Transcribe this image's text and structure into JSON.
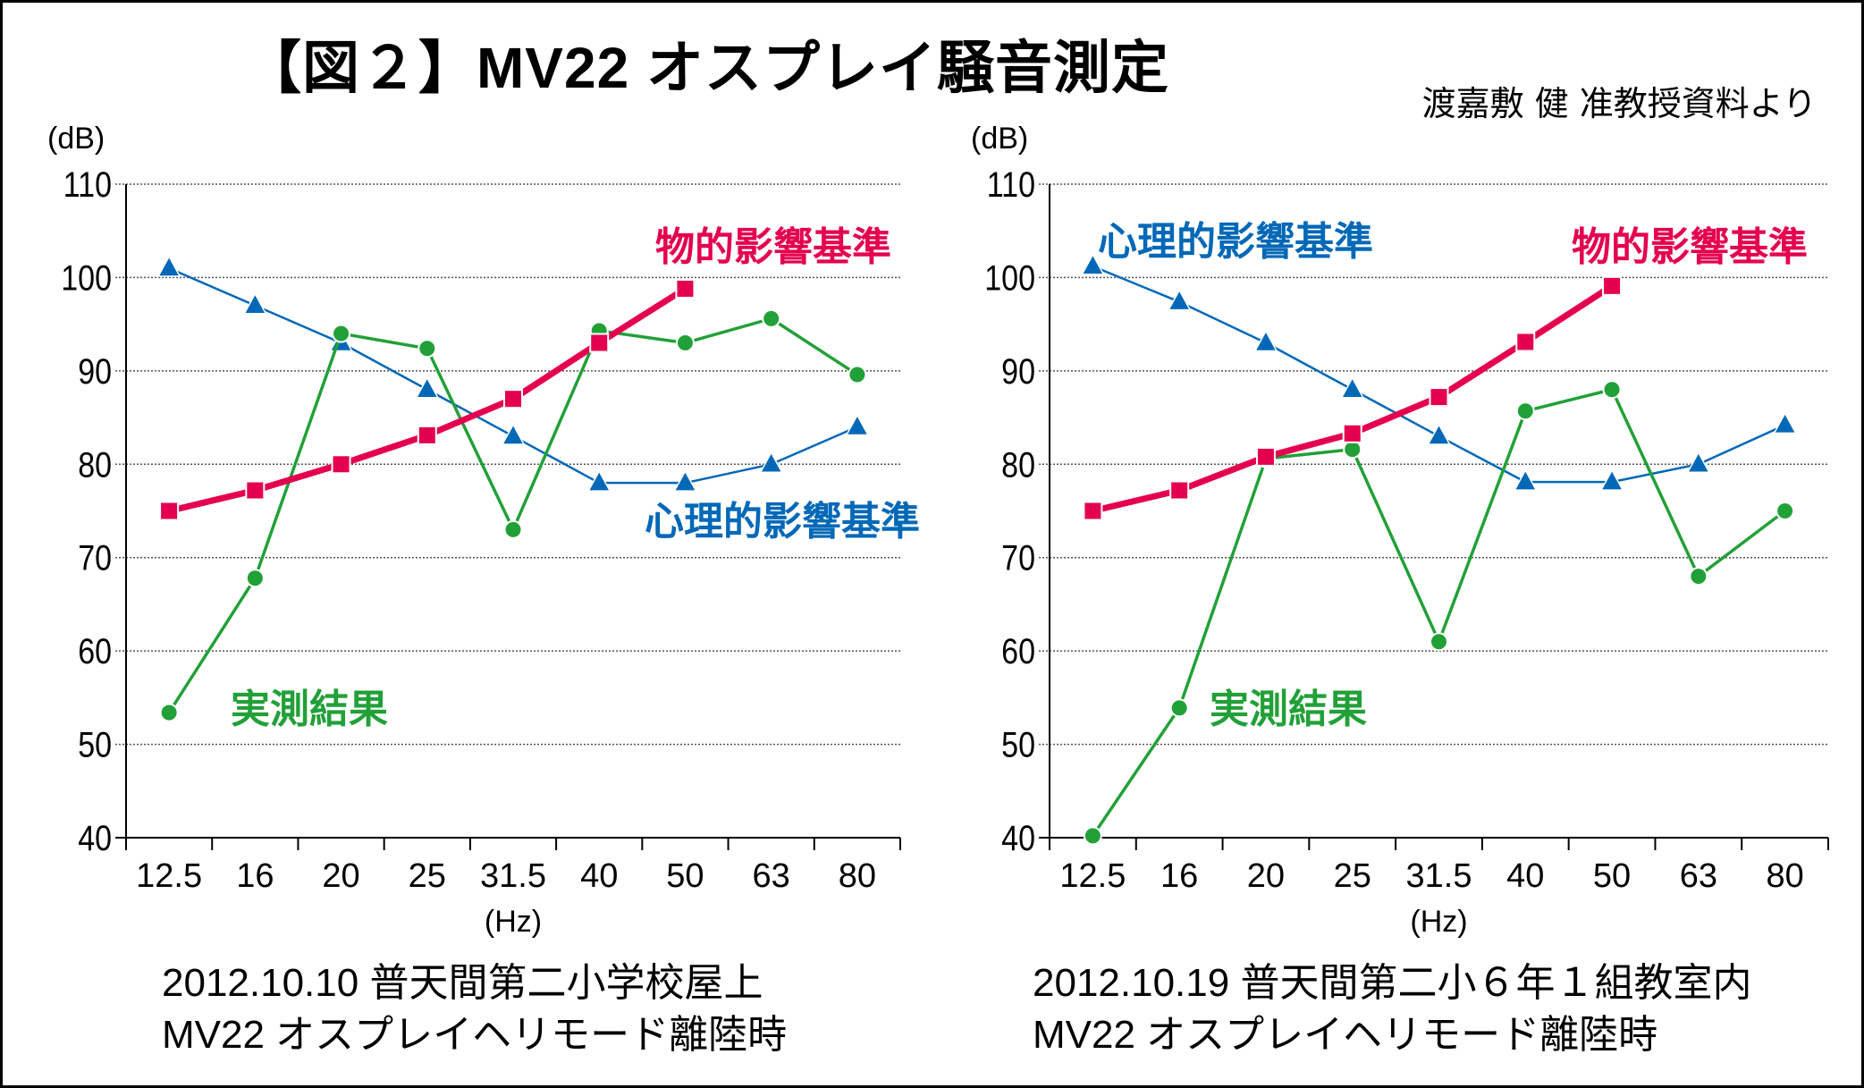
{
  "title": "【図２】MV22 オスプレイ騒音測定",
  "credit": "渡嘉敷 健 准教授資料より",
  "colors": {
    "physical": "#e4004f",
    "psychological": "#0068b7",
    "measured": "#22a038"
  },
  "chart_data": [
    {
      "type": "line",
      "ylabel": "(dB)",
      "xlabel": "(Hz)",
      "ylim": [
        40,
        110
      ],
      "yticks": [
        "40",
        "50",
        "60",
        "70",
        "80",
        "90",
        "100",
        "110"
      ],
      "categories": [
        "12.5",
        "16",
        "20",
        "25",
        "31.5",
        "40",
        "50",
        "63",
        "80"
      ],
      "grid": true,
      "caption": [
        "2012.10.10 普天間第二小学校屋上",
        "MV22 オスプレイヘリモード離陸時"
      ],
      "series": [
        {
          "name": "心理的影響基準",
          "marker": "triangle",
          "values": [
            101,
            97,
            93,
            88,
            83,
            78,
            78,
            80,
            84
          ]
        },
        {
          "name": "物的影響基準",
          "marker": "square",
          "values": [
            75,
            77.2,
            80,
            83.1,
            87,
            93,
            98.8,
            null,
            null
          ]
        },
        {
          "name": "実測結果",
          "marker": "circle",
          "values": [
            53.4,
            67.8,
            94,
            92.4,
            73,
            94.3,
            93,
            95.6,
            89.6
          ]
        }
      ]
    },
    {
      "type": "line",
      "ylabel": "(dB)",
      "xlabel": "(Hz)",
      "ylim": [
        40,
        110
      ],
      "yticks": [
        "40",
        "50",
        "60",
        "70",
        "80",
        "90",
        "100",
        "110"
      ],
      "categories": [
        "12.5",
        "16",
        "20",
        "25",
        "31.5",
        "40",
        "50",
        "63",
        "80"
      ],
      "grid": true,
      "caption": [
        "2012.10.19 普天間第二小６年１組教室内",
        "MV22 オスプレイヘリモード離陸時"
      ],
      "series": [
        {
          "name": "心理的影響基準",
          "marker": "triangle",
          "values": [
            101.2,
            97.4,
            93,
            88,
            83,
            78.1,
            78.1,
            80,
            84.2
          ]
        },
        {
          "name": "物的影響基準",
          "marker": "square",
          "values": [
            75,
            77.2,
            80.8,
            83.3,
            87.2,
            93.1,
            99.1,
            null,
            null
          ]
        },
        {
          "name": "実測結果",
          "marker": "circle",
          "values": [
            40.2,
            53.9,
            80.6,
            81.6,
            61,
            85.7,
            88,
            68,
            75
          ]
        }
      ]
    }
  ]
}
